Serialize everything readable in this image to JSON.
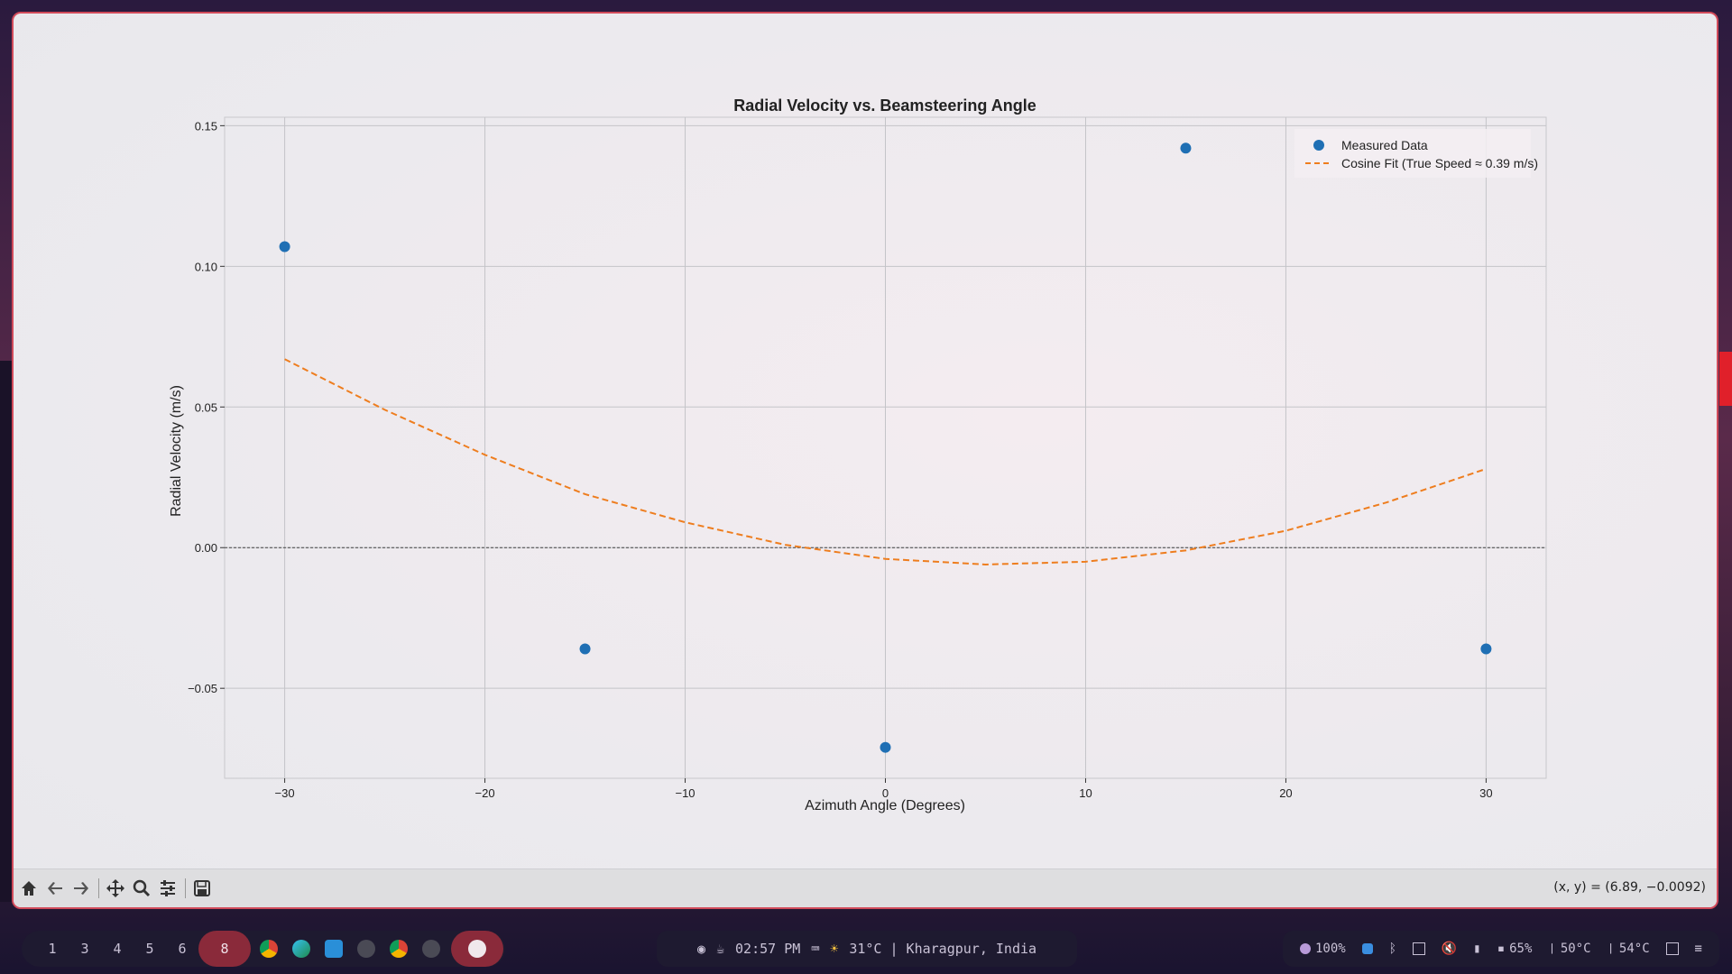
{
  "window": {
    "toolbar_icons": [
      "home-icon",
      "back-arrow-icon",
      "forward-arrow-icon",
      "pan-icon",
      "zoom-icon",
      "configure-icon",
      "save-icon"
    ],
    "coords_readout": "(x, y) = (6.89, −0.0092)"
  },
  "chart_data": {
    "type": "scatter",
    "title": "Radial Velocity vs. Beamsteering Angle",
    "xlabel": "Azimuth Angle (Degrees)",
    "ylabel": "Radial Velocity (m/s)",
    "xlim": [
      -33,
      33
    ],
    "ylim": [
      -0.082,
      0.153
    ],
    "xticks": [
      -30,
      -20,
      -10,
      0,
      10,
      20,
      30
    ],
    "xtick_labels": [
      "−30",
      "−20",
      "−10",
      "0",
      "10",
      "20",
      "30"
    ],
    "yticks": [
      -0.05,
      0.0,
      0.05,
      0.1,
      0.15
    ],
    "ytick_labels": [
      "−0.05",
      "0.00",
      "0.05",
      "0.10",
      "0.15"
    ],
    "grid": true,
    "legend_position": "top-right",
    "zero_line": true,
    "series": [
      {
        "name": "Measured Data",
        "kind": "scatter",
        "color": "#1f6fb4",
        "x": [
          -30,
          -15,
          0,
          15,
          30
        ],
        "y": [
          0.107,
          -0.036,
          -0.071,
          0.142,
          -0.036
        ]
      },
      {
        "name": "Cosine Fit (True Speed ≈ 0.39 m/s)",
        "kind": "line",
        "style": "dashed",
        "color": "#ee7d1e",
        "x": [
          -30,
          -25,
          -20,
          -15,
          -10,
          -5,
          0,
          5,
          10,
          15,
          20,
          25,
          30
        ],
        "y": [
          0.067,
          0.049,
          0.033,
          0.019,
          0.009,
          0.001,
          -0.004,
          -0.006,
          -0.005,
          -0.001,
          0.006,
          0.016,
          0.028
        ]
      }
    ]
  },
  "taskbar": {
    "workspaces": [
      "1",
      "3",
      "4",
      "5",
      "6",
      "8"
    ],
    "active_workspace": "8",
    "apps": [
      "chrome-icon",
      "edge-icon",
      "vscode-icon",
      "terminal-icon",
      "chrome-icon",
      "terminal-icon",
      "app-icon"
    ],
    "time": "02:57 PM",
    "weather": "31°C | Kharagpur, India",
    "brightness": "100%",
    "battery": "65%",
    "cpu_temp": "50°C",
    "gpu_temp": "54°C",
    "accent_active": "#8a2a3a"
  }
}
